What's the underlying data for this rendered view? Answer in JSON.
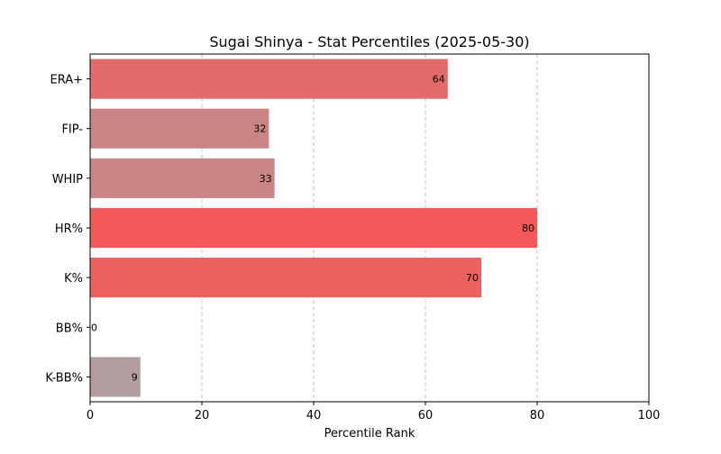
{
  "chart_data": {
    "type": "bar",
    "orientation": "horizontal",
    "title": "Sugai Shinya - Stat Percentiles (2025-05-30)",
    "xlabel": "Percentile Rank",
    "ylabel": "",
    "xlim": [
      0,
      100
    ],
    "xticks": [
      0,
      20,
      40,
      60,
      80,
      100
    ],
    "grid": "x-dashed",
    "categories": [
      "ERA+",
      "FIP-",
      "WHIP",
      "HR%",
      "K%",
      "BB%",
      "K-BB%"
    ],
    "values": [
      64,
      32,
      33,
      80,
      70,
      0,
      9
    ],
    "colors": [
      "#e26b6b",
      "#c98584",
      "#c98584",
      "#f45757",
      "#ec605e",
      "#b0a0a0",
      "#b19e9e"
    ]
  }
}
